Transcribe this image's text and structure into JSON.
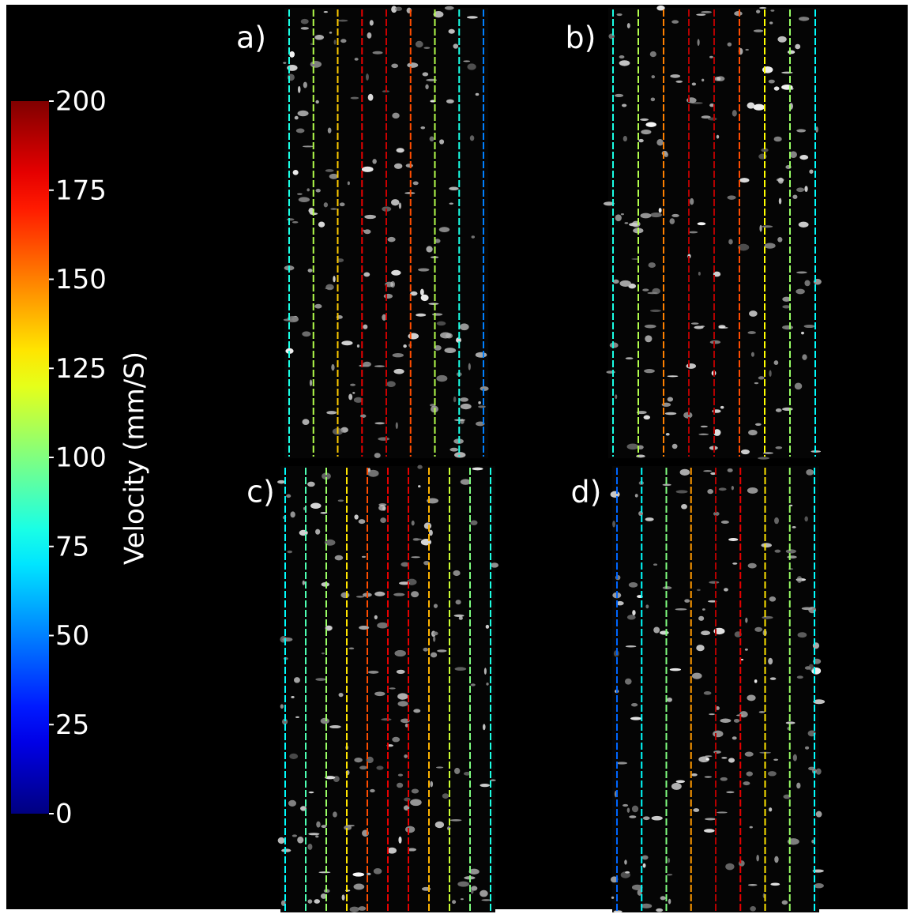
{
  "colorbar": {
    "label": "Velocity (mm/S)",
    "lim": [
      0,
      200
    ],
    "ticks": [
      0,
      25,
      50,
      75,
      100,
      125,
      150,
      175,
      200
    ],
    "colormap": "jet"
  },
  "panels": [
    {
      "label": "a)",
      "line_velocities": [
        80,
        110,
        135,
        180,
        185,
        160,
        110,
        80,
        50
      ]
    },
    {
      "label": "b)",
      "line_velocities": [
        80,
        110,
        150,
        190,
        190,
        160,
        125,
        105,
        75
      ]
    },
    {
      "label": "c)",
      "line_velocities": [
        75,
        90,
        105,
        130,
        160,
        180,
        180,
        140,
        115,
        100,
        80
      ]
    },
    {
      "label": "d)",
      "line_velocities": [
        45,
        75,
        100,
        145,
        190,
        180,
        130,
        105,
        75
      ]
    }
  ]
}
